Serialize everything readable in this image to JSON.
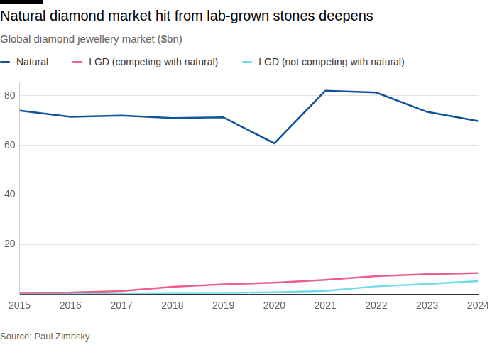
{
  "chart_data": {
    "type": "line",
    "title": "Natural diamond market hit from lab-grown stones deepens",
    "subtitle": "Global diamond jewellery market ($bn)",
    "source": "Source: Paul Zimnsky",
    "categories": [
      "2015",
      "2016",
      "2017",
      "2018",
      "2019",
      "2020",
      "2021",
      "2022",
      "2023",
      "2024"
    ],
    "series": [
      {
        "name": "Natural",
        "color": "#0f5499",
        "values": [
          74,
          71.5,
          72,
          71,
          71.3,
          60.8,
          82,
          81.3,
          73.5,
          69.8
        ]
      },
      {
        "name": "LGD (competing with natural)",
        "color": "#eb5e8d",
        "values": [
          0.5,
          0.6,
          1.2,
          2.9,
          3.9,
          4.6,
          5.7,
          7.2,
          8.0,
          8.4
        ]
      },
      {
        "name": "LGD (not competing with natural)",
        "color": "#70dce8",
        "values": [
          0.1,
          0.2,
          0.3,
          0.4,
          0.5,
          0.7,
          1.3,
          3.1,
          4.1,
          5.2
        ]
      }
    ],
    "ylim": [
      0,
      85
    ],
    "yticks": [
      20,
      40,
      60,
      80
    ],
    "grid": true,
    "legend": "top-left"
  }
}
